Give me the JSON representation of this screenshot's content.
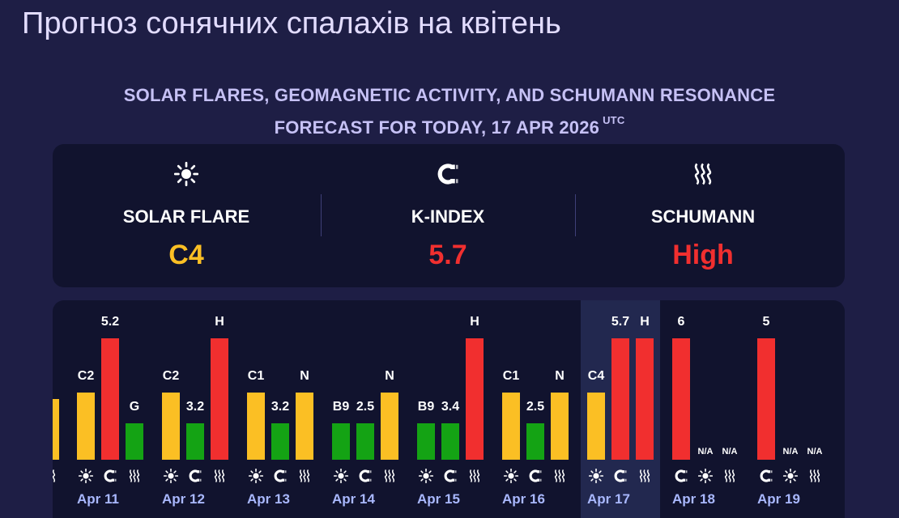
{
  "page": {
    "title": "Прогноз сонячних спалахів на квітень",
    "subheading_line1": "SOLAR FLARES, GEOMAGNETIC ACTIVITY, AND SCHUMANN RESONANCE",
    "subheading_line2": "FORECAST FOR TODAY, 17 APR 2026",
    "subheading_sup": "UTC"
  },
  "summary": [
    {
      "icon": "sun-icon",
      "label": "SOLAR FLARE",
      "value": "C4",
      "color": "#fbbf24"
    },
    {
      "icon": "magnet-icon",
      "label": "K-INDEX",
      "value": "5.7",
      "color": "#f12f2f"
    },
    {
      "icon": "waves-icon",
      "label": "SCHUMANN",
      "value": "High",
      "color": "#f12f2f"
    }
  ],
  "colors": {
    "yellow": "#fbbf24",
    "red": "#f12f2f",
    "green": "#14a314",
    "today_highlight": "#22284f",
    "day_label": "#a9b8ff"
  },
  "timeline": {
    "today": "Apr 17",
    "partial_day": {
      "flare": "",
      "schumann_label": "",
      "icon": "waves-icon"
    },
    "days": [
      {
        "label": "Apr 11",
        "flare": {
          "text": "C2",
          "level": 0.55,
          "color": "yellow"
        },
        "kindex": {
          "text": "5.2",
          "level": 1.0,
          "color": "red"
        },
        "schumann": {
          "text": "G",
          "level": 0.3,
          "color": "green"
        }
      },
      {
        "label": "Apr 12",
        "flare": {
          "text": "C2",
          "level": 0.55,
          "color": "yellow"
        },
        "kindex": {
          "text": "3.2",
          "level": 0.3,
          "color": "green"
        },
        "schumann": {
          "text": "H",
          "level": 1.0,
          "color": "red"
        }
      },
      {
        "label": "Apr 13",
        "flare": {
          "text": "C1",
          "level": 0.55,
          "color": "yellow"
        },
        "kindex": {
          "text": "3.2",
          "level": 0.3,
          "color": "green"
        },
        "schumann": {
          "text": "N",
          "level": 0.55,
          "color": "yellow"
        }
      },
      {
        "label": "Apr 14",
        "flare": {
          "text": "B9",
          "level": 0.3,
          "color": "green"
        },
        "kindex": {
          "text": "2.5",
          "level": 0.3,
          "color": "green"
        },
        "schumann": {
          "text": "N",
          "level": 0.55,
          "color": "yellow"
        }
      },
      {
        "label": "Apr 15",
        "flare": {
          "text": "B9",
          "level": 0.3,
          "color": "green"
        },
        "kindex": {
          "text": "3.4",
          "level": 0.3,
          "color": "green"
        },
        "schumann": {
          "text": "H",
          "level": 1.0,
          "color": "red"
        }
      },
      {
        "label": "Apr 16",
        "flare": {
          "text": "C1",
          "level": 0.55,
          "color": "yellow"
        },
        "kindex": {
          "text": "2.5",
          "level": 0.3,
          "color": "green"
        },
        "schumann": {
          "text": "N",
          "level": 0.55,
          "color": "yellow"
        }
      },
      {
        "label": "Apr 17",
        "flare": {
          "text": "C4",
          "level": 0.55,
          "color": "yellow"
        },
        "kindex": {
          "text": "5.7",
          "level": 1.0,
          "color": "red"
        },
        "schumann": {
          "text": "H",
          "level": 1.0,
          "color": "red"
        }
      },
      {
        "label": "Apr 18",
        "kindex_first": true,
        "kindex": {
          "text": "6",
          "level": 1.0,
          "color": "red"
        },
        "flare": {
          "text": "N/A",
          "level": 0,
          "color": "yellow"
        },
        "schumann": {
          "text": "N/A",
          "level": 0,
          "color": "yellow"
        }
      },
      {
        "label": "Apr 19",
        "kindex_first": true,
        "kindex": {
          "text": "5",
          "level": 1.0,
          "color": "red"
        },
        "flare": {
          "text": "N/A",
          "level": 0,
          "color": "yellow"
        },
        "schumann": {
          "text": "N/A",
          "level": 0,
          "color": "yellow"
        }
      }
    ]
  }
}
